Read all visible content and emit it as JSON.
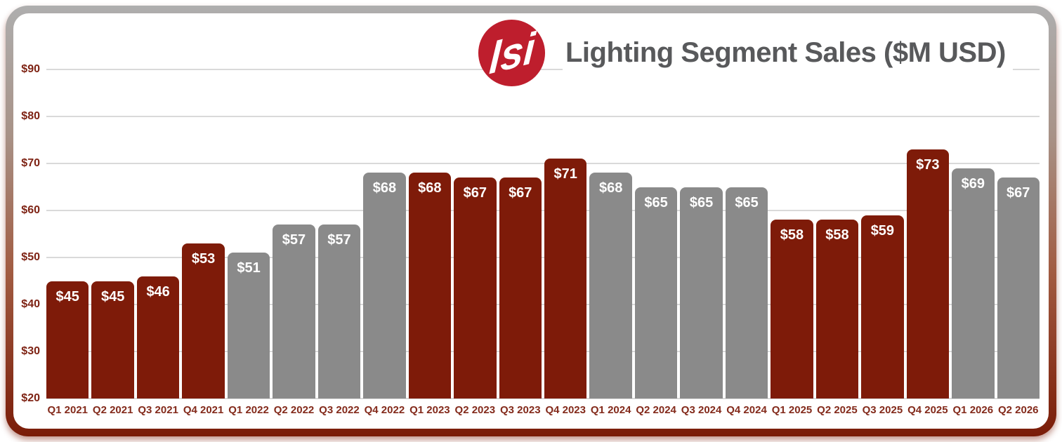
{
  "header": {
    "title": "Lighting Segment Sales ($M USD)",
    "logo_text": "lsi"
  },
  "colors": {
    "bar_red": "#7e1b09",
    "bar_gray": "#8a8a8a",
    "logo_red": "#be1e2d",
    "title_gray": "#58595b",
    "axis_red": "#7e2314",
    "gridline": "#d9d9d9",
    "value_label": "#ffffff",
    "border_gradient_top": "#aeaeae",
    "border_gradient_bottom": "#7a1c08"
  },
  "chart_data": {
    "type": "bar",
    "title": "Lighting Segment Sales ($M USD)",
    "xlabel": "",
    "ylabel": "",
    "ylim": [
      20,
      90
    ],
    "grid": true,
    "legend_position": "none",
    "y_ticks": [
      {
        "value": 90,
        "label": "$90"
      },
      {
        "value": 80,
        "label": "$80"
      },
      {
        "value": 70,
        "label": "$70"
      },
      {
        "value": 60,
        "label": "$60"
      },
      {
        "value": 50,
        "label": "$50"
      },
      {
        "value": 40,
        "label": "$40"
      },
      {
        "value": 30,
        "label": "$30"
      },
      {
        "value": 20,
        "label": "$20"
      }
    ],
    "categories": [
      "Q1 2021",
      "Q2 2021",
      "Q3 2021",
      "Q4 2021",
      "Q1 2022",
      "Q2 2022",
      "Q3 2022",
      "Q4 2022",
      "Q1 2023",
      "Q2 2023",
      "Q3 2023",
      "Q4 2023",
      "Q1 2024",
      "Q2 2024",
      "Q3 2024",
      "Q4 2024",
      "Q1 2025",
      "Q2 2025",
      "Q3 2025",
      "Q4 2025",
      "Q1 2026",
      "Q2 2026"
    ],
    "values": [
      45,
      45,
      46,
      53,
      51,
      57,
      57,
      68,
      68,
      67,
      67,
      71,
      68,
      65,
      65,
      65,
      58,
      58,
      59,
      73,
      69,
      67
    ],
    "value_labels": [
      "$45",
      "$45",
      "$46",
      "$53",
      "$51",
      "$57",
      "$57",
      "$68",
      "$68",
      "$67",
      "$67",
      "$71",
      "$68",
      "$65",
      "$65",
      "$65",
      "$58",
      "$58",
      "$59",
      "$73",
      "$69",
      "$67"
    ],
    "bar_color_keys": [
      "red",
      "red",
      "red",
      "red",
      "gray",
      "gray",
      "gray",
      "gray",
      "red",
      "red",
      "red",
      "red",
      "gray",
      "gray",
      "gray",
      "gray",
      "red",
      "red",
      "red",
      "red",
      "gray",
      "gray"
    ]
  }
}
